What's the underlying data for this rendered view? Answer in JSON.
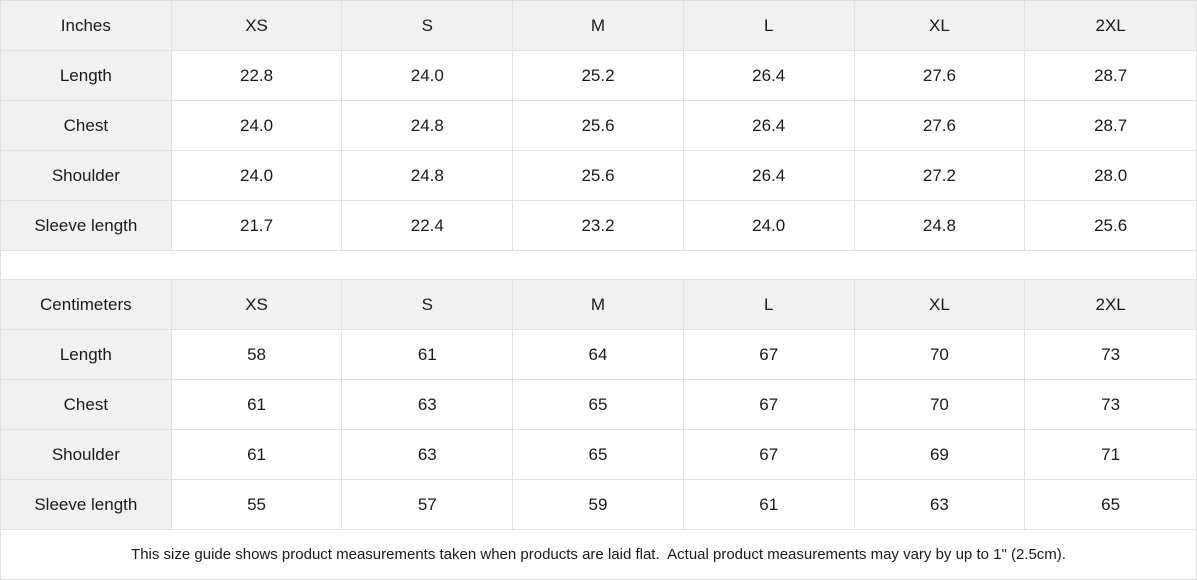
{
  "tables": [
    {
      "unit_label": "Inches",
      "sizes": [
        "XS",
        "S",
        "M",
        "L",
        "XL",
        "2XL"
      ],
      "rows": [
        {
          "label": "Length",
          "values": [
            "22.8",
            "24.0",
            "25.2",
            "26.4",
            "27.6",
            "28.7"
          ]
        },
        {
          "label": "Chest",
          "values": [
            "24.0",
            "24.8",
            "25.6",
            "26.4",
            "27.6",
            "28.7"
          ]
        },
        {
          "label": "Shoulder",
          "values": [
            "24.0",
            "24.8",
            "25.6",
            "26.4",
            "27.2",
            "28.0"
          ]
        },
        {
          "label": "Sleeve length",
          "values": [
            "21.7",
            "22.4",
            "23.2",
            "24.0",
            "24.8",
            "25.6"
          ]
        }
      ]
    },
    {
      "unit_label": "Centimeters",
      "sizes": [
        "XS",
        "S",
        "M",
        "L",
        "XL",
        "2XL"
      ],
      "rows": [
        {
          "label": "Length",
          "values": [
            "58",
            "61",
            "64",
            "67",
            "70",
            "73"
          ]
        },
        {
          "label": "Chest",
          "values": [
            "61",
            "63",
            "65",
            "67",
            "70",
            "73"
          ]
        },
        {
          "label": "Shoulder",
          "values": [
            "61",
            "63",
            "65",
            "67",
            "69",
            "71"
          ]
        },
        {
          "label": "Sleeve length",
          "values": [
            "55",
            "57",
            "59",
            "61",
            "63",
            "65"
          ]
        }
      ]
    }
  ],
  "footer": {
    "note": "This size guide shows product measurements taken when products are laid flat.  Actual product measurements may vary by up to 1\" (2.5cm)."
  },
  "colors": {
    "header_bg": "#f1f1f1",
    "border": "#e2e2e2",
    "text": "#1a1a1a"
  }
}
